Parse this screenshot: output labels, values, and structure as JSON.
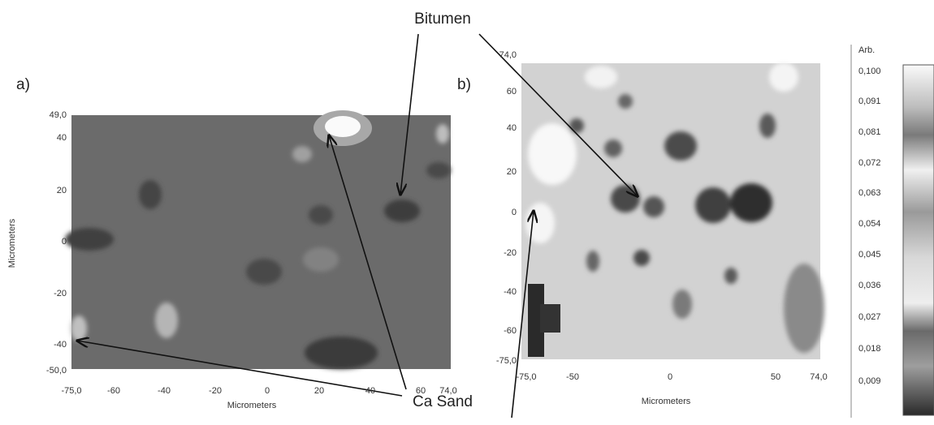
{
  "labels": {
    "bitumen": "Bitumen",
    "ca_sand": "Ca Sand",
    "panel_a": "a)",
    "panel_b": "b)"
  },
  "panel_a": {
    "x_label": "Micrometers",
    "y_label": "Micrometers",
    "xticks": [
      "-75,0",
      "-60",
      "-40",
      "-20",
      "0",
      "20",
      "40",
      "60",
      "74,0"
    ],
    "yticks": [
      "49,0",
      "40",
      "20",
      "0",
      "-20",
      "-40",
      "-50,0"
    ]
  },
  "panel_b": {
    "x_label": "Micrometers",
    "xticks": [
      "-75,0",
      "-50",
      "0",
      "50",
      "74,0"
    ],
    "yticks": [
      "74,0",
      "60",
      "40",
      "20",
      "0",
      "-20",
      "-40",
      "-60",
      "-75,0"
    ]
  },
  "colorbar": {
    "title": "Arb.",
    "ticks": [
      "0,100",
      "0,091",
      "0,081",
      "0,072",
      "0,063",
      "0,054",
      "0,045",
      "0,036",
      "0,027",
      "0,018",
      "0,009"
    ]
  }
}
